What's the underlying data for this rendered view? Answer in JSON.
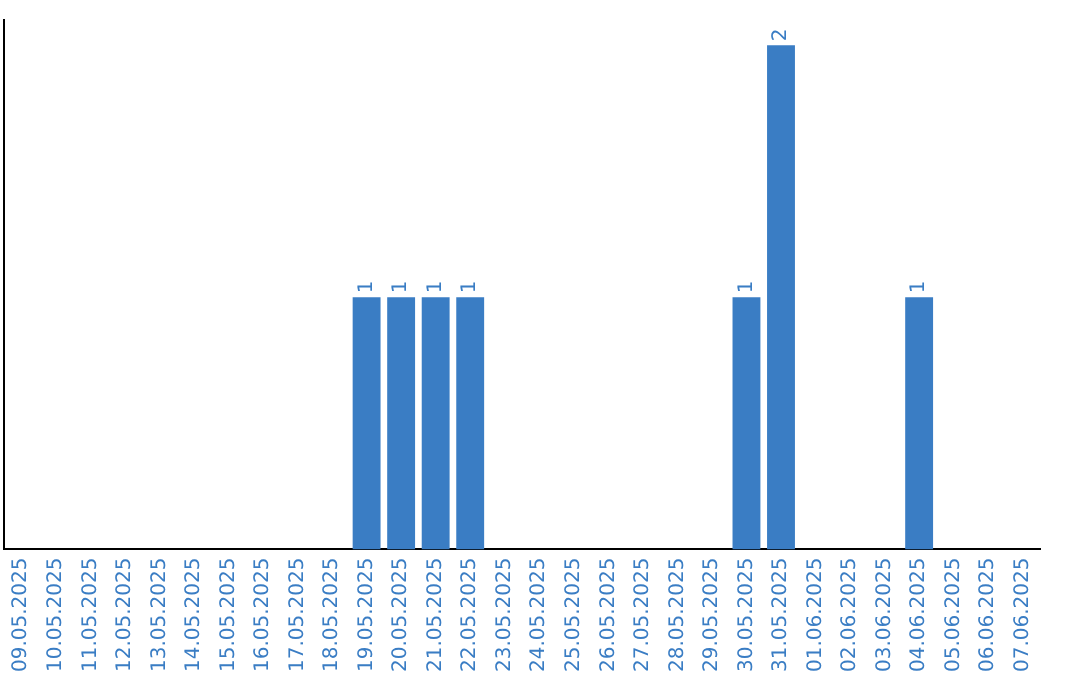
{
  "chart_data": {
    "type": "bar",
    "categories": [
      "09.05.2025",
      "10.05.2025",
      "11.05.2025",
      "12.05.2025",
      "13.05.2025",
      "14.05.2025",
      "15.05.2025",
      "16.05.2025",
      "17.05.2025",
      "18.05.2025",
      "19.05.2025",
      "20.05.2025",
      "21.05.2025",
      "22.05.2025",
      "23.05.2025",
      "24.05.2025",
      "25.05.2025",
      "26.05.2025",
      "27.05.2025",
      "28.05.2025",
      "29.05.2025",
      "30.05.2025",
      "31.05.2025",
      "01.06.2025",
      "02.06.2025",
      "03.06.2025",
      "04.06.2025",
      "05.06.2025",
      "06.06.2025",
      "07.06.2025"
    ],
    "values": [
      0,
      0,
      0,
      0,
      0,
      0,
      0,
      0,
      0,
      0,
      1,
      1,
      1,
      1,
      0,
      0,
      0,
      0,
      0,
      0,
      0,
      1,
      2,
      0,
      0,
      0,
      1,
      0,
      0,
      0
    ],
    "value_labels": [
      null,
      null,
      null,
      null,
      null,
      null,
      null,
      null,
      null,
      null,
      "1",
      "1",
      "1",
      "1",
      null,
      null,
      null,
      null,
      null,
      null,
      null,
      "1",
      "2",
      null,
      null,
      null,
      "1",
      null,
      null,
      null
    ],
    "color": "#3a7dc4",
    "ylim": [
      0,
      2.1
    ],
    "grid": false,
    "legend": false,
    "tick_labels": "x"
  }
}
